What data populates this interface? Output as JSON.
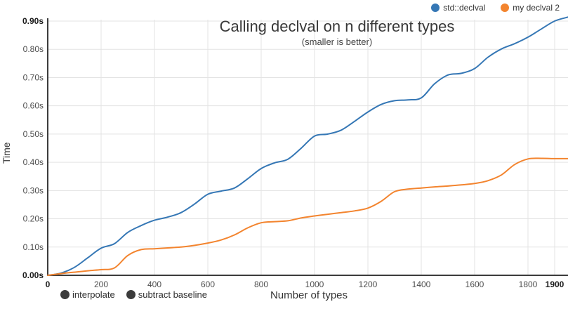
{
  "title": "Calling declval on n different types",
  "subtitle": "(smaller is better)",
  "legend": {
    "items": [
      {
        "label": "std::declval",
        "color": "#3577b5"
      },
      {
        "label": "my declval 2",
        "color": "#f3842e"
      }
    ]
  },
  "controls": {
    "interpolate_label": "interpolate",
    "subtract_baseline_label": "subtract baseline"
  },
  "chart_data": {
    "type": "line",
    "title": "Calling declval on n different types",
    "subtitle": "(smaller is better)",
    "xlabel": "Number of types",
    "ylabel": "Time",
    "xlim": [
      0,
      1950
    ],
    "ylim": [
      0,
      0.9
    ],
    "grid": true,
    "legend_position": "top-right",
    "colors": {
      "background": "#ffffff",
      "grid": "#e3e3e3",
      "axis": "#3c3c3c",
      "tick": "#4d4d4d",
      "tick_bold": "#1a1a1a"
    },
    "x_ticks": [
      {
        "label": "0",
        "value": 0,
        "bold": true
      },
      {
        "label": "200",
        "value": 200
      },
      {
        "label": "400",
        "value": 400
      },
      {
        "label": "600",
        "value": 600
      },
      {
        "label": "800",
        "value": 800
      },
      {
        "label": "1000",
        "value": 1000
      },
      {
        "label": "1200",
        "value": 1200
      },
      {
        "label": "1400",
        "value": 1400
      },
      {
        "label": "1600",
        "value": 1600
      },
      {
        "label": "1800",
        "value": 1800
      },
      {
        "label": "1900",
        "value": 1900,
        "bold": true
      }
    ],
    "y_ticks": [
      {
        "label": "0.00s",
        "value": 0.0,
        "bold": true
      },
      {
        "label": "0.10s",
        "value": 0.1
      },
      {
        "label": "0.20s",
        "value": 0.2
      },
      {
        "label": "0.30s",
        "value": 0.3
      },
      {
        "label": "0.40s",
        "value": 0.4
      },
      {
        "label": "0.50s",
        "value": 0.5
      },
      {
        "label": "0.60s",
        "value": 0.6
      },
      {
        "label": "0.70s",
        "value": 0.7
      },
      {
        "label": "0.80s",
        "value": 0.8
      },
      {
        "label": "0.90s",
        "value": 0.9,
        "bold": true
      }
    ],
    "series": [
      {
        "name": "std::declval",
        "color": "#3577b5",
        "x": [
          0,
          50,
          100,
          150,
          200,
          250,
          300,
          350,
          400,
          450,
          500,
          550,
          600,
          650,
          700,
          750,
          800,
          850,
          900,
          950,
          1000,
          1050,
          1100,
          1150,
          1200,
          1250,
          1300,
          1350,
          1400,
          1450,
          1500,
          1550,
          1600,
          1650,
          1700,
          1750,
          1800,
          1850,
          1900,
          1950
        ],
        "y": [
          0.0,
          0.008,
          0.028,
          0.062,
          0.096,
          0.112,
          0.152,
          0.176,
          0.195,
          0.206,
          0.222,
          0.252,
          0.287,
          0.298,
          0.309,
          0.342,
          0.378,
          0.398,
          0.411,
          0.45,
          0.493,
          0.5,
          0.514,
          0.545,
          0.578,
          0.605,
          0.618,
          0.621,
          0.628,
          0.678,
          0.709,
          0.715,
          0.732,
          0.772,
          0.801,
          0.82,
          0.843,
          0.872,
          0.9,
          0.914
        ]
      },
      {
        "name": "my declval 2",
        "color": "#f3842e",
        "x": [
          0,
          50,
          100,
          150,
          200,
          250,
          300,
          350,
          400,
          450,
          500,
          550,
          600,
          650,
          700,
          750,
          800,
          850,
          900,
          950,
          1000,
          1050,
          1100,
          1150,
          1200,
          1250,
          1300,
          1350,
          1400,
          1450,
          1500,
          1550,
          1600,
          1650,
          1700,
          1750,
          1800,
          1850,
          1900,
          1950
        ],
        "y": [
          0.0,
          0.006,
          0.011,
          0.016,
          0.02,
          0.026,
          0.07,
          0.091,
          0.094,
          0.097,
          0.1,
          0.106,
          0.114,
          0.125,
          0.143,
          0.168,
          0.186,
          0.19,
          0.193,
          0.203,
          0.21,
          0.216,
          0.222,
          0.228,
          0.238,
          0.262,
          0.296,
          0.305,
          0.309,
          0.313,
          0.316,
          0.32,
          0.325,
          0.335,
          0.355,
          0.392,
          0.412,
          0.414,
          0.413,
          0.413
        ]
      }
    ]
  }
}
